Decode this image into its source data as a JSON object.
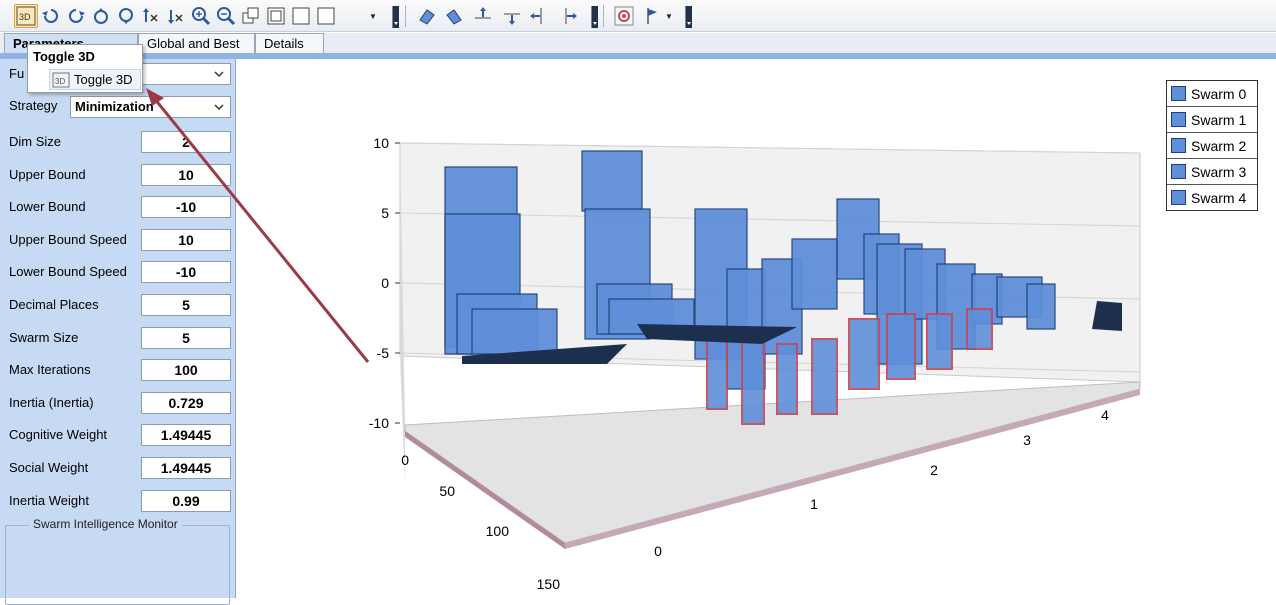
{
  "toolbar": {
    "buttons": [
      {
        "icon": "toggle-3d-icon",
        "active": true
      },
      {
        "icon": "rotate-left-icon"
      },
      {
        "icon": "rotate-right-icon"
      },
      {
        "icon": "rotate-up-icon"
      },
      {
        "icon": "rotate-down-icon"
      },
      {
        "icon": "rotate-x-icon"
      },
      {
        "icon": "rotate-x-reverse-icon"
      },
      {
        "icon": "zoom-in-icon"
      },
      {
        "icon": "zoom-out-icon"
      },
      {
        "icon": "copy-icon"
      },
      {
        "icon": "frame-icon"
      },
      {
        "icon": "empty-box-icon"
      },
      {
        "icon": "box-dropdown-icon"
      },
      {
        "icon": "perspective-left-icon"
      },
      {
        "icon": "perspective-right-icon"
      },
      {
        "icon": "move-up-icon"
      },
      {
        "icon": "move-down-icon"
      },
      {
        "icon": "move-left-icon"
      },
      {
        "icon": "move-right-icon"
      },
      {
        "icon": "reset-view-icon"
      },
      {
        "icon": "flag-icon"
      }
    ]
  },
  "tabs": [
    {
      "label": "Parameters",
      "active": true
    },
    {
      "label": "Global and Best"
    },
    {
      "label": "Details"
    }
  ],
  "tooltip": {
    "title": "Toggle 3D",
    "item_label": "Toggle 3D",
    "item_icon_text": "3D"
  },
  "panel": {
    "function_label": "Fu",
    "function_value": "",
    "strategy_label": "Strategy",
    "strategy_value": "Minimization",
    "params": [
      {
        "label": "Dim Size",
        "value": "2"
      },
      {
        "label": "Upper Bound",
        "value": "10"
      },
      {
        "label": "Lower Bound",
        "value": "-10"
      },
      {
        "label": "Upper Bound Speed",
        "value": "10"
      },
      {
        "label": "Lower Bound Speed",
        "value": "-10"
      },
      {
        "label": "Decimal Places",
        "value": "5"
      },
      {
        "label": "Swarm Size",
        "value": "5"
      },
      {
        "label": "Max Iterations",
        "value": "100"
      },
      {
        "label": "Inertia (Inertia)",
        "value": "0.729"
      },
      {
        "label": "Cognitive Weight",
        "value": "1.49445"
      },
      {
        "label": "Social Weight",
        "value": "1.49445"
      },
      {
        "label": "Inertia Weight",
        "value": "0.99"
      }
    ],
    "monitor_title": "Swarm Intelligence Monitor"
  },
  "chart": {
    "y_ticks": [
      "10",
      "5",
      "0",
      "-5",
      "-10"
    ],
    "depth_ticks": [
      "0",
      "50",
      "100",
      "150"
    ],
    "x_ticks": [
      "0",
      "1",
      "2",
      "3",
      "4"
    ],
    "series_color": "#5f8fd8",
    "series_edge": "#1e3f78",
    "negative_edge": "#c04a5a"
  },
  "legend": {
    "items": [
      "Swarm 0",
      "Swarm 1",
      "Swarm 2",
      "Swarm 3",
      "Swarm 4"
    ]
  }
}
